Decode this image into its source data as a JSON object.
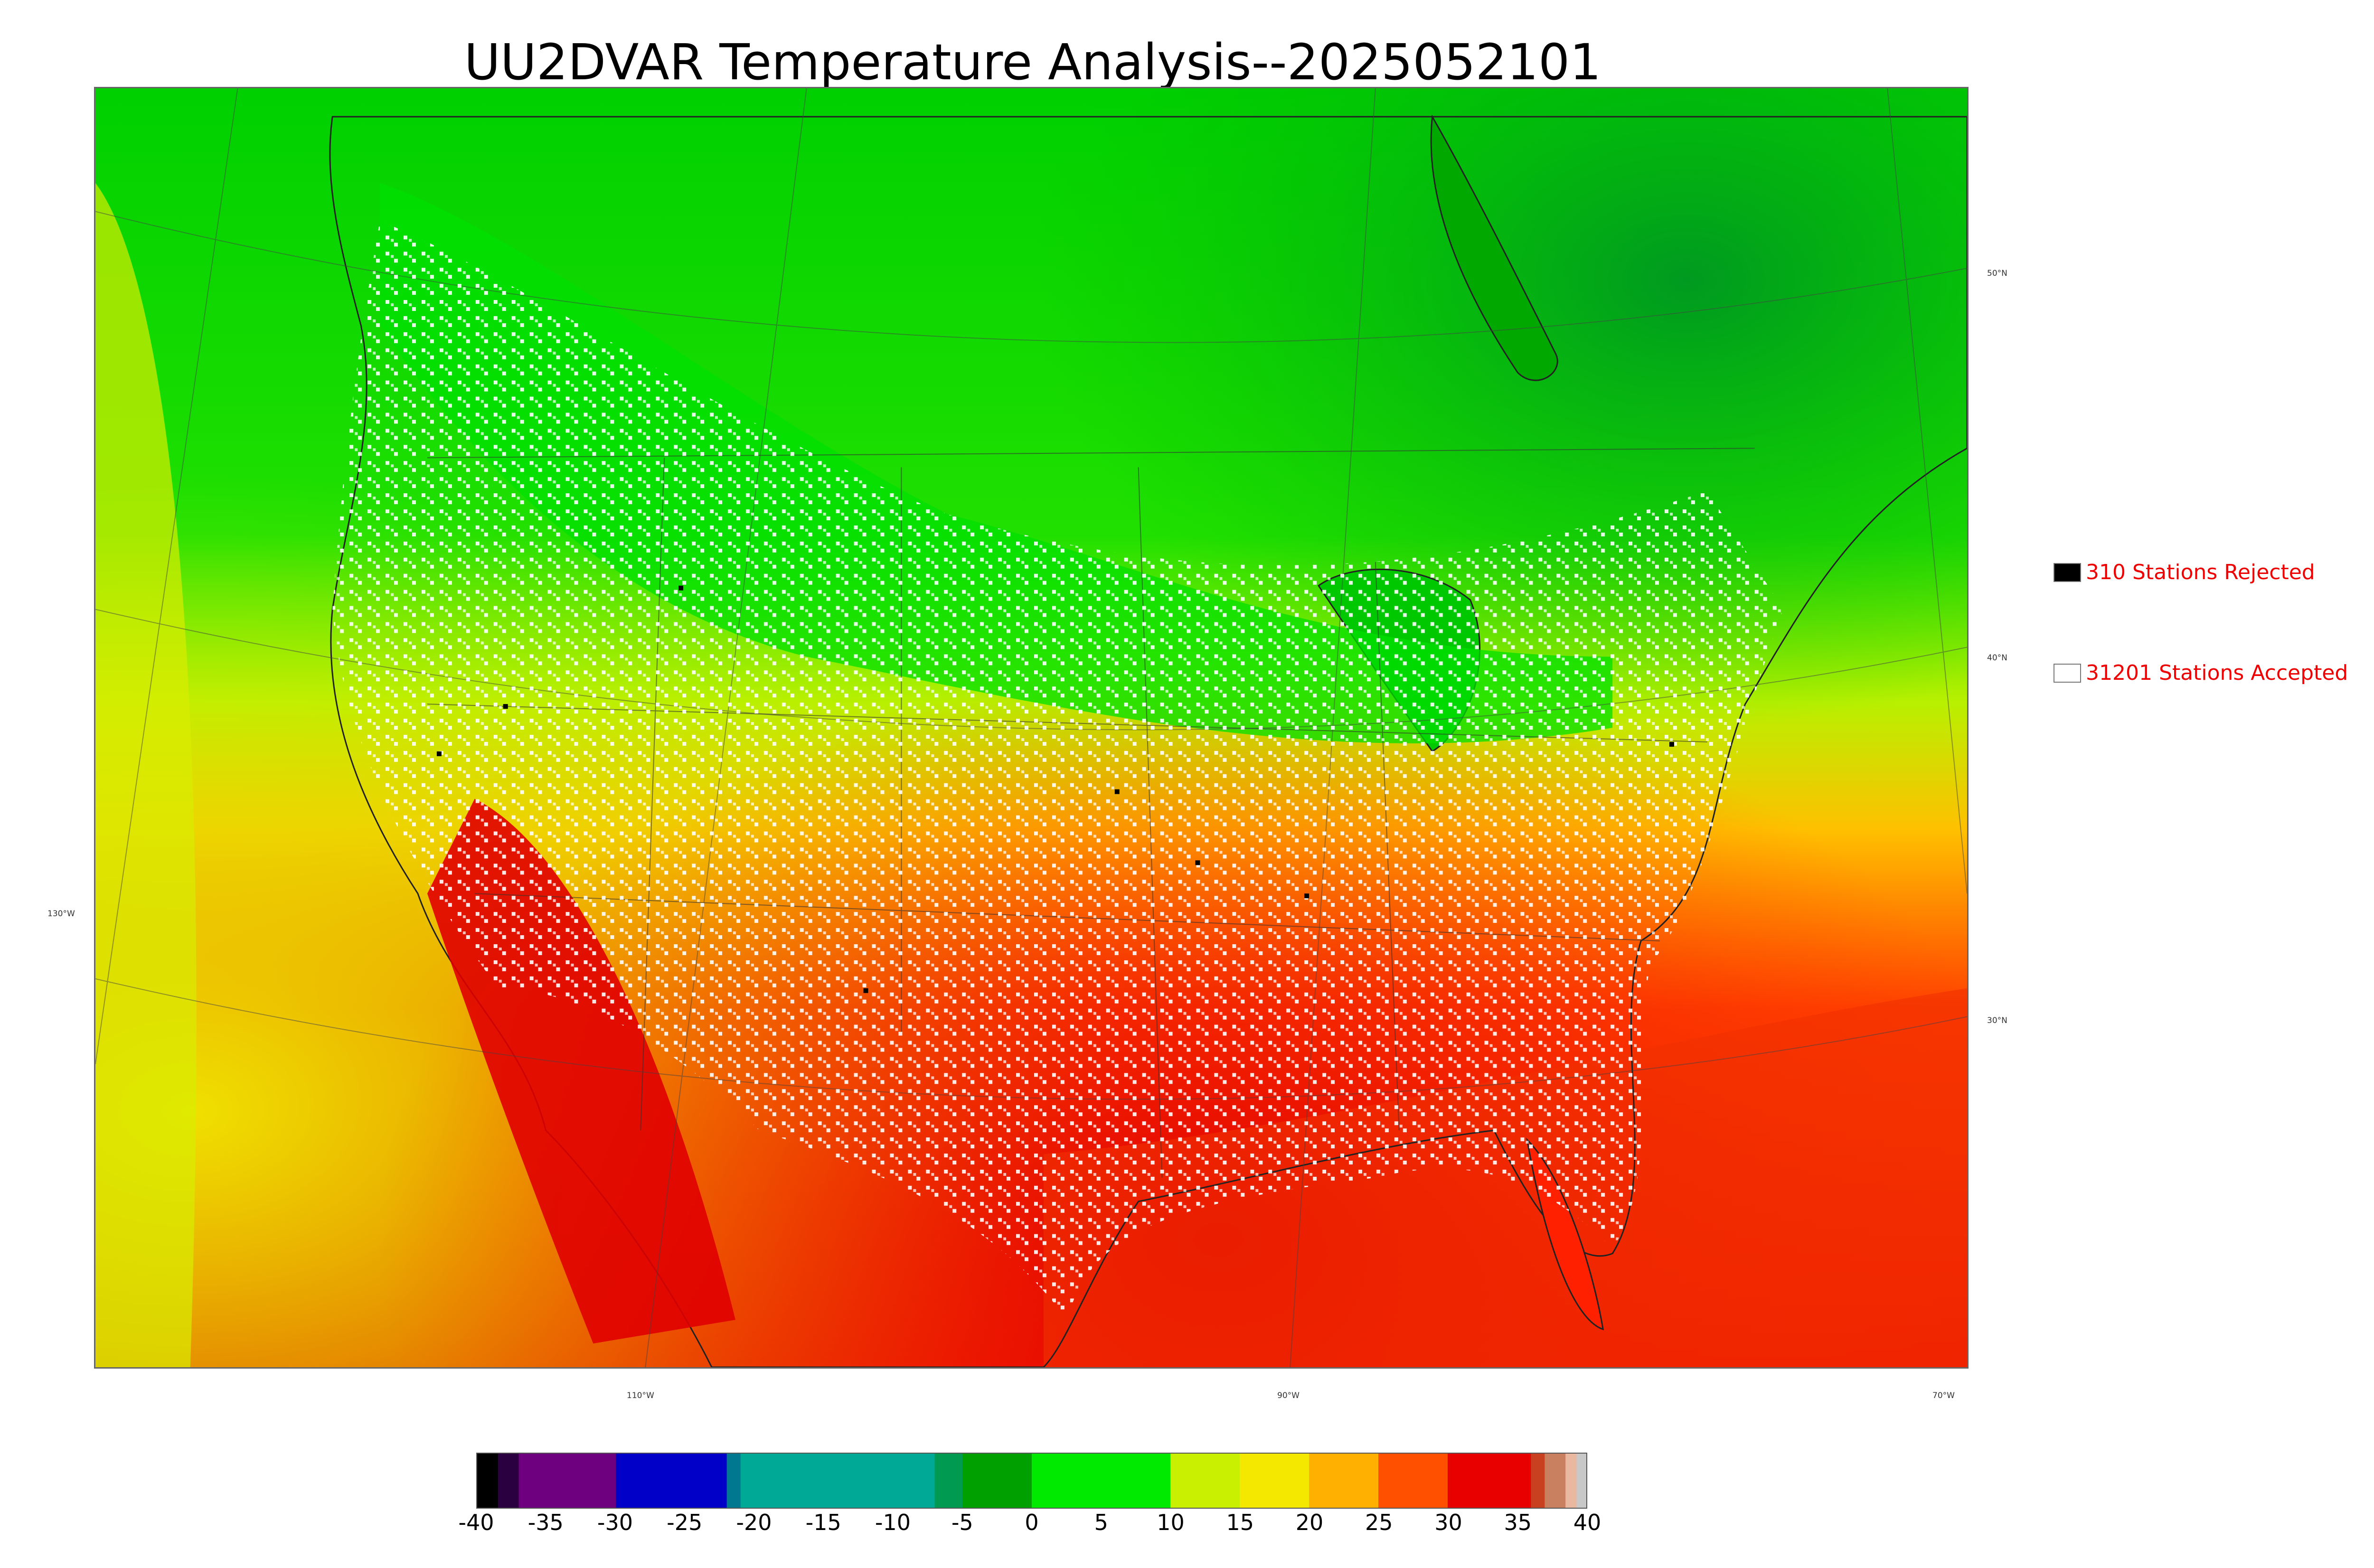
{
  "title": "UU2DVAR Temperature Analysis--2025052101",
  "legend": {
    "rejected": {
      "label": "310 Stations Rejected",
      "swatch_color": "#000000",
      "text_color": "#ee0000"
    },
    "accepted": {
      "label": "31201 Stations Accepted",
      "swatch_color": "#ffffff",
      "text_color": "#ee0000"
    }
  },
  "axis_labels": {
    "longitude": [
      "130°W",
      "110°W",
      "90°W",
      "70°W"
    ],
    "latitude": [
      "50°N",
      "40°N",
      "30°N"
    ]
  },
  "colorbar": {
    "min": -40,
    "max": 40,
    "ticks": [
      "-40",
      "-35",
      "-30",
      "-25",
      "-20",
      "-15",
      "-10",
      "-5",
      "0",
      "5",
      "10",
      "15",
      "20",
      "25",
      "30",
      "35",
      "40"
    ],
    "segments": [
      {
        "from": -40,
        "to": -38.5,
        "color": "#000000"
      },
      {
        "from": -38.5,
        "to": -37,
        "color": "#2a0040"
      },
      {
        "from": -37,
        "to": -30,
        "color": "#6e0080"
      },
      {
        "from": -30,
        "to": -22,
        "color": "#0000c8"
      },
      {
        "from": -22,
        "to": -21,
        "color": "#007890"
      },
      {
        "from": -21,
        "to": -7,
        "color": "#00a896"
      },
      {
        "from": -7,
        "to": -5,
        "color": "#009a50"
      },
      {
        "from": -5,
        "to": 0,
        "color": "#00a000"
      },
      {
        "from": 0,
        "to": 10,
        "color": "#00ea00"
      },
      {
        "from": 10,
        "to": 15,
        "color": "#c8f000"
      },
      {
        "from": 15,
        "to": 20,
        "color": "#f4e800"
      },
      {
        "from": 20,
        "to": 25,
        "color": "#ffb000"
      },
      {
        "from": 25,
        "to": 30,
        "color": "#ff5000"
      },
      {
        "from": 30,
        "to": 36,
        "color": "#e80000"
      },
      {
        "from": 36,
        "to": 37,
        "color": "#c84020"
      },
      {
        "from": 37,
        "to": 38.5,
        "color": "#c88060"
      },
      {
        "from": 38.5,
        "to": 39.3,
        "color": "#e8b8a0"
      },
      {
        "from": 39.3,
        "to": 40,
        "color": "#c8c8c8"
      }
    ]
  }
}
